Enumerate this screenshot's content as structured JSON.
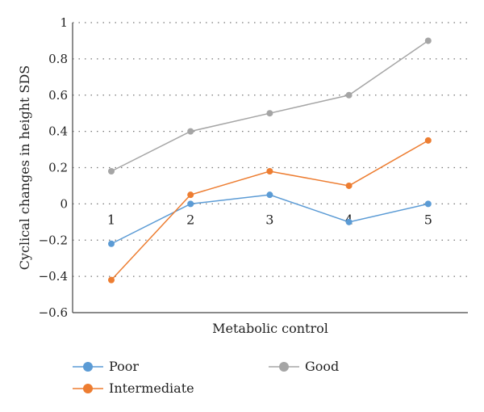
{
  "chart_data": {
    "type": "line",
    "title": "",
    "xlabel": "Metabolic control",
    "ylabel": "Cyclical changes in height SDS",
    "categories": [
      "1",
      "2",
      "3",
      "4",
      "5"
    ],
    "ylim": [
      -0.6,
      1
    ],
    "yticks": [
      -0.6,
      -0.4,
      -0.2,
      0,
      0.2,
      0.4,
      0.6,
      0.8,
      1
    ],
    "ytick_labels": [
      "−0.6",
      "−0.4",
      "−0.2",
      "0",
      "0.2",
      "0.4",
      "0.6",
      "0.8",
      "1"
    ],
    "grid": true,
    "legend_position": "bottom",
    "series": [
      {
        "name": "Poor",
        "color": "#5b9bd5",
        "values": [
          -0.22,
          0.0,
          0.05,
          -0.1,
          0.0
        ]
      },
      {
        "name": "Intermediate",
        "color": "#ed7d31",
        "values": [
          -0.42,
          0.05,
          0.18,
          0.1,
          0.35
        ]
      },
      {
        "name": "Good",
        "color": "#a5a5a5",
        "values": [
          0.18,
          0.4,
          0.5,
          0.6,
          0.9
        ]
      }
    ]
  }
}
